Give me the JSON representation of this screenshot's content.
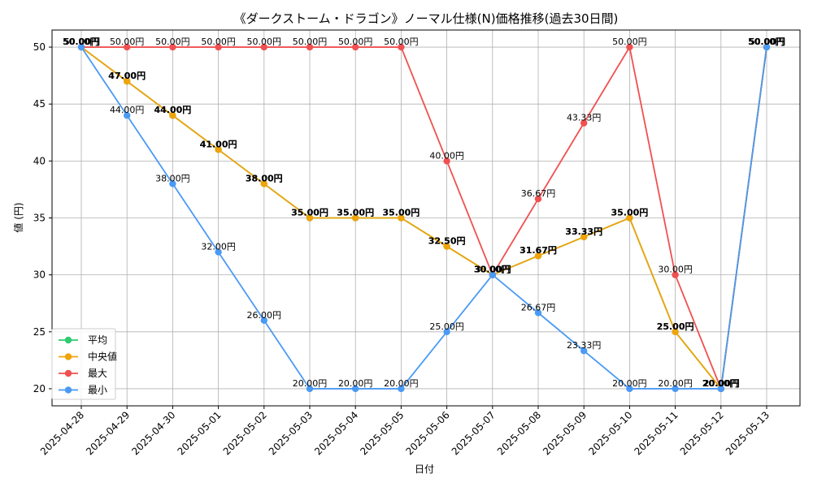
{
  "chart_data": {
    "type": "line",
    "title": "《ダークストーム・ドラゴン》ノーマル仕様(N)価格推移(過去30日間)",
    "xlabel": "日付",
    "ylabel": "値 (円)",
    "ylim": [
      18.5,
      51.5
    ],
    "yticks": [
      20,
      25,
      30,
      35,
      40,
      45,
      50
    ],
    "grid": true,
    "legend_position": "lower-left",
    "label_suffix": "円",
    "categories": [
      "2025-04-28",
      "2025-04-29",
      "2025-04-30",
      "2025-05-01",
      "2025-05-02",
      "2025-05-03",
      "2025-05-04",
      "2025-05-05",
      "2025-05-06",
      "2025-05-07",
      "2025-05-08",
      "2025-05-09",
      "2025-05-10",
      "2025-05-11",
      "2025-05-12",
      "2025-05-13"
    ],
    "series": [
      {
        "name": "平均",
        "color": "#2ecc71",
        "values": [
          50,
          47,
          44,
          41,
          38,
          35,
          35,
          35,
          32.5,
          30,
          31.67,
          33.33,
          35,
          25,
          20,
          50
        ]
      },
      {
        "name": "中央値",
        "color": "#f0a30a",
        "values": [
          50,
          47,
          44,
          41,
          38,
          35,
          35,
          35,
          32.5,
          30,
          31.67,
          33.33,
          35,
          25,
          20,
          50
        ]
      },
      {
        "name": "最大",
        "color": "#f05050",
        "values": [
          50,
          50,
          50,
          50,
          50,
          50,
          50,
          50,
          40,
          30,
          36.67,
          43.33,
          50,
          30,
          20,
          50
        ]
      },
      {
        "name": "最小",
        "color": "#4a9af5",
        "values": [
          50,
          44,
          38,
          32,
          26,
          20,
          20,
          20,
          25,
          30,
          26.67,
          23.33,
          20,
          20,
          20,
          50
        ]
      }
    ]
  }
}
